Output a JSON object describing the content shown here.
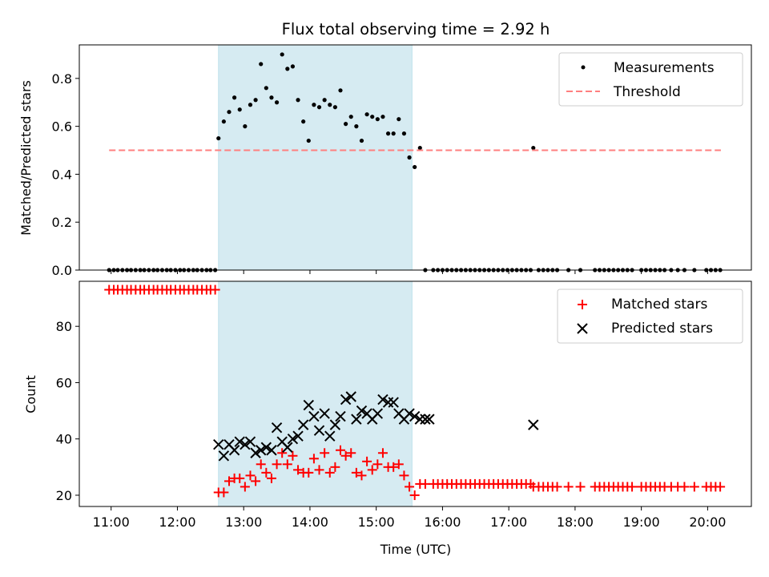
{
  "chart_data": [
    {
      "type": "scatter",
      "title": "Flux total observing time = 2.92 h",
      "ylabel": "Matched/Predicted stars",
      "xlim": [
        10.52,
        20.66
      ],
      "ylim": [
        0,
        0.94
      ],
      "x_ticks": [
        {
          "value": 11,
          "label": "11:00"
        },
        {
          "value": 12,
          "label": "12:00"
        },
        {
          "value": 13,
          "label": "13:00"
        },
        {
          "value": 14,
          "label": "14:00"
        },
        {
          "value": 15,
          "label": "15:00"
        },
        {
          "value": 16,
          "label": "16:00"
        },
        {
          "value": 17,
          "label": "17:00"
        },
        {
          "value": 18,
          "label": "18:00"
        },
        {
          "value": 19,
          "label": "19:00"
        },
        {
          "value": 20,
          "label": "20:00"
        }
      ],
      "y_ticks": [
        {
          "value": 0.0,
          "label": "0.0"
        },
        {
          "value": 0.2,
          "label": "0.2"
        },
        {
          "value": 0.4,
          "label": "0.4"
        },
        {
          "value": 0.6,
          "label": "0.6"
        },
        {
          "value": 0.8,
          "label": "0.8"
        }
      ],
      "shaded_span": {
        "x": [
          12.62,
          15.54
        ],
        "color": "#add8e6"
      },
      "legend_position": "top-right",
      "series": [
        {
          "name": "Measurements",
          "marker": "dot",
          "color": "#000000",
          "x": [
            10.97,
            11.04,
            11.1,
            11.17,
            11.24,
            11.3,
            11.37,
            11.44,
            11.5,
            11.57,
            11.64,
            11.7,
            11.77,
            11.84,
            11.9,
            11.97,
            12.04,
            12.1,
            12.17,
            12.24,
            12.3,
            12.37,
            12.44,
            12.5,
            12.57,
            12.62,
            12.7,
            12.78,
            12.86,
            12.94,
            13.02,
            13.1,
            13.18,
            13.26,
            13.34,
            13.42,
            13.5,
            13.58,
            13.66,
            13.74,
            13.82,
            13.9,
            13.98,
            14.06,
            14.14,
            14.22,
            14.3,
            14.38,
            14.46,
            14.54,
            14.62,
            14.7,
            14.78,
            14.86,
            14.94,
            15.02,
            15.1,
            15.18,
            15.26,
            15.34,
            15.42,
            15.5,
            15.58,
            15.66,
            15.74,
            15.86,
            15.93,
            16.0,
            16.07,
            16.14,
            16.21,
            16.28,
            16.35,
            16.42,
            16.49,
            16.56,
            16.63,
            16.7,
            16.77,
            16.84,
            16.91,
            16.98,
            17.05,
            17.12,
            17.19,
            17.26,
            17.33,
            17.37,
            17.45,
            17.52,
            17.59,
            17.66,
            17.73,
            17.9,
            18.08,
            18.3,
            18.37,
            18.44,
            18.51,
            18.58,
            18.65,
            18.72,
            18.79,
            18.86,
            19.0,
            19.07,
            19.14,
            19.21,
            19.28,
            19.35,
            19.45,
            19.55,
            19.65,
            19.8,
            19.98,
            20.05,
            20.12,
            20.19
          ],
          "y": [
            0,
            0,
            0,
            0,
            0,
            0,
            0,
            0,
            0,
            0,
            0,
            0,
            0,
            0,
            0,
            0,
            0,
            0,
            0,
            0,
            0,
            0,
            0,
            0,
            0,
            0.55,
            0.62,
            0.66,
            0.72,
            0.67,
            0.6,
            0.69,
            0.71,
            0.86,
            0.76,
            0.72,
            0.7,
            0.9,
            0.84,
            0.85,
            0.71,
            0.62,
            0.54,
            0.69,
            0.68,
            0.71,
            0.69,
            0.68,
            0.75,
            0.61,
            0.64,
            0.6,
            0.54,
            0.65,
            0.64,
            0.63,
            0.64,
            0.57,
            0.57,
            0.63,
            0.57,
            0.47,
            0.43,
            0.51,
            0,
            0,
            0,
            0,
            0,
            0,
            0,
            0,
            0,
            0,
            0,
            0,
            0,
            0,
            0,
            0,
            0,
            0,
            0,
            0,
            0,
            0,
            0,
            0.51,
            0,
            0,
            0,
            0,
            0,
            0,
            0,
            0,
            0,
            0,
            0,
            0,
            0,
            0,
            0,
            0,
            0,
            0,
            0,
            0,
            0,
            0,
            0,
            0,
            0,
            0,
            0,
            0,
            0,
            0
          ]
        },
        {
          "name": "Threshold",
          "marker": "dashed-line",
          "color": "#ff7f7f",
          "x": [
            10.97,
            20.2
          ],
          "y": [
            0.5,
            0.5
          ]
        }
      ]
    },
    {
      "type": "scatter",
      "xlabel": "Time (UTC)",
      "ylabel": "Count",
      "xlim": [
        10.52,
        20.66
      ],
      "ylim": [
        16,
        96
      ],
      "x_ticks": [
        {
          "value": 11,
          "label": "11:00"
        },
        {
          "value": 12,
          "label": "12:00"
        },
        {
          "value": 13,
          "label": "13:00"
        },
        {
          "value": 14,
          "label": "14:00"
        },
        {
          "value": 15,
          "label": "15:00"
        },
        {
          "value": 16,
          "label": "16:00"
        },
        {
          "value": 17,
          "label": "17:00"
        },
        {
          "value": 18,
          "label": "18:00"
        },
        {
          "value": 19,
          "label": "19:00"
        },
        {
          "value": 20,
          "label": "20:00"
        }
      ],
      "y_ticks": [
        {
          "value": 20,
          "label": "20"
        },
        {
          "value": 40,
          "label": "40"
        },
        {
          "value": 60,
          "label": "60"
        },
        {
          "value": 80,
          "label": "80"
        }
      ],
      "shaded_span": {
        "x": [
          12.62,
          15.54
        ],
        "color": "#add8e6"
      },
      "legend_position": "top-right",
      "series": [
        {
          "name": "Matched stars",
          "marker": "plus",
          "color": "#ff0000",
          "x": [
            10.97,
            11.04,
            11.1,
            11.17,
            11.24,
            11.3,
            11.37,
            11.44,
            11.5,
            11.57,
            11.64,
            11.7,
            11.77,
            11.84,
            11.9,
            11.97,
            12.04,
            12.1,
            12.17,
            12.24,
            12.3,
            12.37,
            12.44,
            12.5,
            12.57,
            12.62,
            12.7,
            12.78,
            12.86,
            12.94,
            13.02,
            13.1,
            13.18,
            13.26,
            13.34,
            13.42,
            13.5,
            13.58,
            13.66,
            13.74,
            13.82,
            13.9,
            13.98,
            14.06,
            14.14,
            14.22,
            14.3,
            14.38,
            14.46,
            14.54,
            14.62,
            14.7,
            14.78,
            14.86,
            14.94,
            15.02,
            15.1,
            15.18,
            15.26,
            15.34,
            15.42,
            15.5,
            15.58,
            15.66,
            15.74,
            15.86,
            15.93,
            16.0,
            16.07,
            16.14,
            16.21,
            16.28,
            16.35,
            16.42,
            16.49,
            16.56,
            16.63,
            16.7,
            16.77,
            16.84,
            16.91,
            16.98,
            17.05,
            17.12,
            17.19,
            17.26,
            17.33,
            17.37,
            17.45,
            17.52,
            17.59,
            17.66,
            17.73,
            17.9,
            18.08,
            18.3,
            18.37,
            18.44,
            18.51,
            18.58,
            18.65,
            18.72,
            18.79,
            18.86,
            19.0,
            19.07,
            19.14,
            19.21,
            19.28,
            19.35,
            19.45,
            19.55,
            19.65,
            19.8,
            19.98,
            20.05,
            20.12,
            20.19
          ],
          "y": [
            93,
            93,
            93,
            93,
            93,
            93,
            93,
            93,
            93,
            93,
            93,
            93,
            93,
            93,
            93,
            93,
            93,
            93,
            93,
            93,
            93,
            93,
            93,
            93,
            93,
            21,
            21,
            25,
            26,
            26,
            23,
            27,
            25,
            31,
            28,
            26,
            31,
            35,
            31,
            34,
            29,
            28,
            28,
            33,
            29,
            35,
            28,
            30,
            36,
            34,
            35,
            28,
            27,
            32,
            29,
            31,
            35,
            30,
            30,
            31,
            27,
            23,
            20,
            24,
            24,
            24,
            24,
            24,
            24,
            24,
            24,
            24,
            24,
            24,
            24,
            24,
            24,
            24,
            24,
            24,
            24,
            24,
            24,
            24,
            24,
            24,
            24,
            23,
            23,
            23,
            23,
            23,
            23,
            23,
            23,
            23,
            23,
            23,
            23,
            23,
            23,
            23,
            23,
            23,
            23,
            23,
            23,
            23,
            23,
            23,
            23,
            23,
            23,
            23,
            23,
            23,
            23,
            23
          ]
        },
        {
          "name": "Predicted stars",
          "marker": "x",
          "color": "#000000",
          "x": [
            12.62,
            12.7,
            12.78,
            12.86,
            12.94,
            13.02,
            13.1,
            13.18,
            13.26,
            13.34,
            13.42,
            13.5,
            13.58,
            13.66,
            13.74,
            13.82,
            13.9,
            13.98,
            14.06,
            14.14,
            14.22,
            14.3,
            14.38,
            14.46,
            14.54,
            14.62,
            14.7,
            14.78,
            14.86,
            14.94,
            15.02,
            15.1,
            15.18,
            15.26,
            15.34,
            15.42,
            15.5,
            15.58,
            15.66,
            15.74,
            15.8,
            17.37
          ],
          "y": [
            38,
            34,
            38,
            36,
            39,
            38,
            39,
            35,
            36,
            37,
            36,
            44,
            39,
            37,
            40,
            41,
            45,
            52,
            48,
            43,
            49,
            41,
            45,
            48,
            54,
            55,
            47,
            50,
            49,
            47,
            49,
            54,
            53,
            53,
            49,
            47,
            49,
            48,
            47,
            47,
            47,
            45
          ]
        }
      ]
    }
  ]
}
